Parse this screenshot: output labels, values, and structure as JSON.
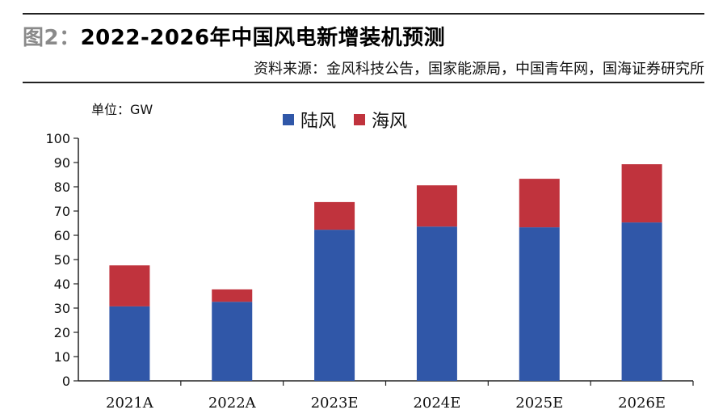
{
  "header": {
    "figure_label": "图2：",
    "title": "2022-2026年中国风电新增装机预测",
    "source": "资料来源：金风科技公告，国家能源局，中国青年网，国海证券研究所"
  },
  "unit_label": "单位：GW",
  "colors": {
    "onshore": "#3057a8",
    "offshore": "#c0333d",
    "axis": "#222222"
  },
  "chart_data": {
    "type": "bar",
    "stacked": true,
    "categories": [
      "2021A",
      "2022A",
      "2023E",
      "2024E",
      "2025E",
      "2026E"
    ],
    "series": [
      {
        "name": "陆风",
        "values": [
          30.7,
          32.6,
          62.3,
          63.6,
          63.3,
          65.3
        ]
      },
      {
        "name": "海风",
        "values": [
          16.9,
          5.1,
          11.4,
          17.0,
          20.0,
          24.0
        ]
      }
    ],
    "ylim": [
      0,
      100
    ],
    "yticks": [
      0,
      10,
      20,
      30,
      40,
      50,
      60,
      70,
      80,
      90,
      100
    ],
    "grid": false,
    "legend": "top-center"
  }
}
